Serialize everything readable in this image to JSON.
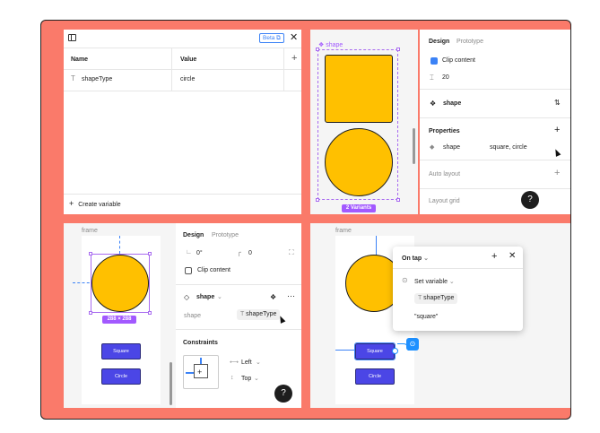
{
  "variables_panel": {
    "beta_badge": "Beta",
    "columns": [
      "Name",
      "Value"
    ],
    "rows": [
      {
        "name": "shapeType",
        "value": "circle"
      }
    ],
    "create_label": "Create variable"
  },
  "variants_canvas": {
    "component_label": "shape",
    "variants_badge": "2 Variants"
  },
  "design_panel_1": {
    "tabs": [
      "Design",
      "Prototype"
    ],
    "clip_content_label": "Clip content",
    "spacing_value": "20",
    "component_name": "shape",
    "properties_title": "Properties",
    "property_name": "shape",
    "property_value": "square, circle",
    "auto_layout_label": "Auto layout",
    "layout_grid_label": "Layout grid"
  },
  "frame_canvas_1": {
    "frame_label": "frame",
    "size_badge": "288 × 288",
    "square_button": "Square",
    "circle_button": "Circle"
  },
  "design_panel_2": {
    "tabs": [
      "Design",
      "Prototype"
    ],
    "rotation_value": "0°",
    "radius_value": "0",
    "clip_content_label": "Clip content",
    "instance_name": "shape",
    "property_label": "shape",
    "property_binding": "shapeType",
    "constraints_title": "Constraints",
    "horizontal_constraint": "Left",
    "vertical_constraint": "Top"
  },
  "prototype_canvas": {
    "frame_label": "frame",
    "square_button": "Square",
    "circle_button": "Circle",
    "popup": {
      "trigger": "On tap",
      "action": "Set variable",
      "variable": "shapeType",
      "value": "\"square\""
    }
  },
  "help_label": "?",
  "colors": {
    "background": "#fa7a6a",
    "shape_fill": "#ffc000",
    "button_fill": "#4b46e6",
    "selection": "#a259ff",
    "prototype_accent": "#1e90ff"
  }
}
